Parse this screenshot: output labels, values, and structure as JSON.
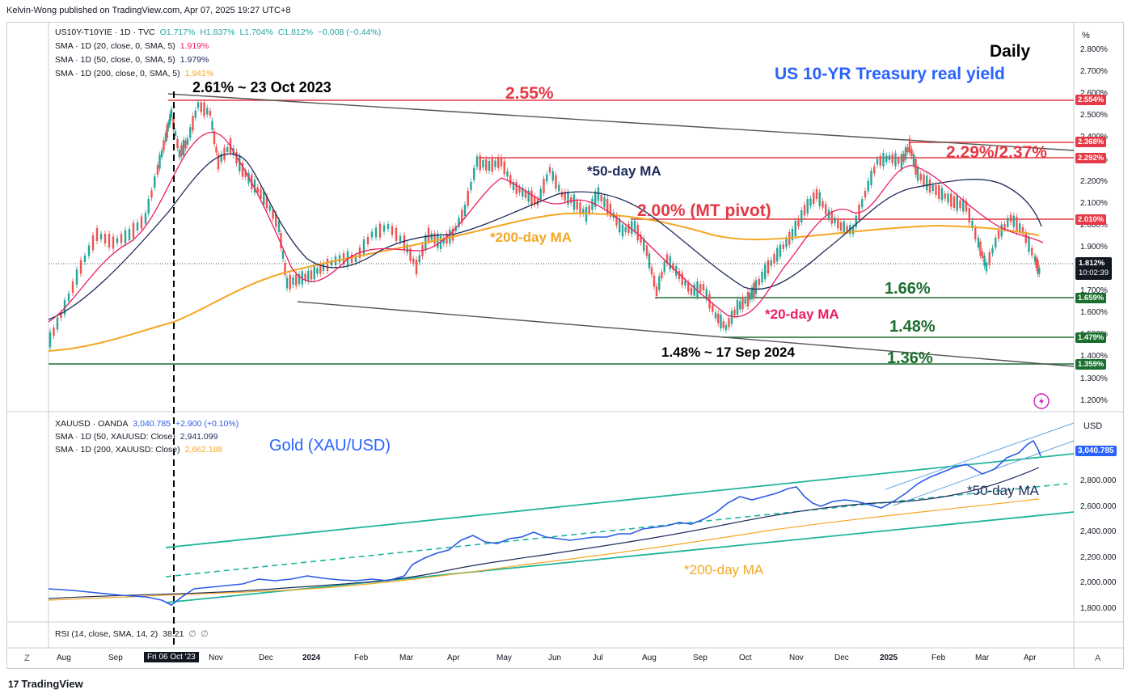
{
  "publisher": "Kelvin-Wong published on TradingView.com, Apr 07, 2025 19:27 UTC+8",
  "footer_logo": "TradingView",
  "top_pane": {
    "legend": {
      "symbol": "US10Y-T10YIE · 1D · TVC",
      "open": "O1.717%",
      "high": "H1.837%",
      "low": "L1.704%",
      "close": "C1.812%",
      "change": "−0.008 (−0.44%)",
      "sma20_label": "SMA · 1D (20, close, 0, SMA, 5)",
      "sma20_value": "1.919%",
      "sma50_label": "SMA · 1D (50, close, 0, SMA, 5)",
      "sma50_value": "1.979%",
      "sma200_label": "SMA · 1D (200, close, 0, SMA, 5)",
      "sma200_value": "1.941%"
    },
    "titles": {
      "daily": "Daily",
      "main": "US 10-YR Treasury real yield"
    },
    "annotations": {
      "peak": "2.61% ~ 23 Oct 2023",
      "level_255": "2.55%",
      "level_229_237": "2.29%/2.37%",
      "ma50": "*50-day MA",
      "pivot": "2.00% (MT pivot)",
      "ma200": "*200-day MA",
      "level_166": "1.66%",
      "ma20": "*20-day MA",
      "level_148": "1.48%",
      "low": "1.48%  ~ 17 Sep 2024",
      "level_136": "1.36%"
    },
    "axis_unit": "%",
    "y_ticks": [
      "2.800%",
      "2.700%",
      "2.600%",
      "2.500%",
      "2.400%",
      "2.300%",
      "2.200%",
      "2.100%",
      "2.000%",
      "1.900%",
      "1.800%",
      "1.700%",
      "1.600%",
      "1.500%",
      "1.400%",
      "1.300%",
      "1.200%"
    ],
    "price_tags": {
      "t2554": "2.554%",
      "t2368": "2.368%",
      "t2292": "2.292%",
      "t2010": "2.010%",
      "current": "1.812%",
      "countdown": "10:02:39",
      "t1659": "1.659%",
      "t1479": "1.479%",
      "t1359": "1.359%"
    }
  },
  "bottom_pane": {
    "legend": {
      "symbol": "XAUUSD · OANDA",
      "price": "3,040.785",
      "change": "+2.900 (+0.10%)",
      "sma50_label": "SMA · 1D (50, XAUUSD: Close)",
      "sma50_value": "2,941.099",
      "sma200_label": "SMA · 1D (200, XAUUSD: Close)",
      "sma200_value": "2,662.188"
    },
    "title": "Gold (XAU/USD)",
    "annotations": {
      "ma50": "*50-day MA",
      "ma200": "*200-day MA"
    },
    "axis_unit": "USD",
    "y_ticks": [
      "2,800.000",
      "2,600.000",
      "2,400.000",
      "2,200.000",
      "2,000.000",
      "1,800.000"
    ],
    "price_tag": "3,040.785"
  },
  "rsi_pane": {
    "legend": "RSI (14, close, SMA, 14, 2)",
    "value": "38.21",
    "na1": "∅",
    "na2": "∅"
  },
  "x_axis": {
    "labels": [
      "Aug",
      "Sep",
      "Fri 06 Oct '23",
      "Nov",
      "Dec",
      "2024",
      "Feb",
      "Mar",
      "Apr",
      "May",
      "Jun",
      "Jul",
      "Aug",
      "Sep",
      "Oct",
      "Nov",
      "Dec",
      "2025",
      "Feb",
      "Mar",
      "Apr"
    ],
    "corner_left": "Z",
    "corner_right": "A"
  },
  "colors": {
    "candle_up": "#26a69a",
    "candle_down": "#ef5350",
    "sma20": "#e91e63",
    "sma50": "#1e2a5a",
    "sma200": "#f5a623",
    "resistance": "#e53945",
    "support": "#1b6e2e",
    "gold_line": "#2b5ce6",
    "channel": "#1fb49b",
    "accent_blue": "#2962ff"
  }
}
